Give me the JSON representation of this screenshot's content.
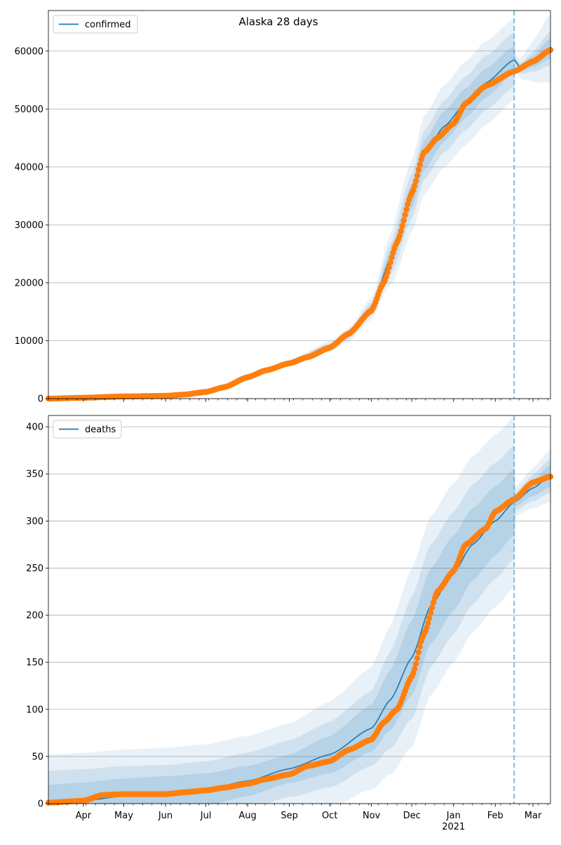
{
  "title": "Alaska 28 days",
  "colors": {
    "model_line": "#1f77b4",
    "observed_points": "#ff7f0e",
    "band": "#1f77b4",
    "forecast_marker": "#6baed6",
    "grid": "#b0b0b0"
  },
  "x_axis": {
    "start": "2020-03-06",
    "end": "2021-03-14",
    "month_ticks": [
      {
        "date": "2020-04-01",
        "label": "Apr"
      },
      {
        "date": "2020-05-01",
        "label": "May"
      },
      {
        "date": "2020-06-01",
        "label": "Jun"
      },
      {
        "date": "2020-07-01",
        "label": "Jul"
      },
      {
        "date": "2020-08-01",
        "label": "Aug"
      },
      {
        "date": "2020-09-01",
        "label": "Sep"
      },
      {
        "date": "2020-10-01",
        "label": "Oct"
      },
      {
        "date": "2020-11-01",
        "label": "Nov"
      },
      {
        "date": "2020-12-01",
        "label": "Dec"
      },
      {
        "date": "2021-01-01",
        "label": "Jan"
      },
      {
        "date": "2021-02-01",
        "label": "Feb"
      },
      {
        "date": "2021-03-01",
        "label": "Mar"
      }
    ],
    "year_label": {
      "date": "2021-01-01",
      "label": "2021"
    }
  },
  "chart_data": [
    {
      "type": "line",
      "legend": "confirmed",
      "legend_position": "top-left",
      "ylim": [
        0,
        67000
      ],
      "yticks": [
        0,
        10000,
        20000,
        30000,
        40000,
        50000,
        60000
      ],
      "grid": "horizontal",
      "forecast_start": "2021-02-15",
      "forecast_end": "2021-03-14",
      "model": [
        [
          "2020-03-06",
          0
        ],
        [
          "2020-05-01",
          300
        ],
        [
          "2020-06-01",
          500
        ],
        [
          "2020-07-01",
          1300
        ],
        [
          "2020-08-01",
          3600
        ],
        [
          "2020-09-01",
          6200
        ],
        [
          "2020-10-01",
          9000
        ],
        [
          "2020-10-15",
          11000
        ],
        [
          "2020-11-01",
          15500
        ],
        [
          "2020-11-15",
          24000
        ],
        [
          "2020-12-01",
          35000
        ],
        [
          "2020-12-10",
          42000
        ],
        [
          "2020-12-25",
          47000
        ],
        [
          "2021-01-10",
          51000
        ],
        [
          "2021-01-25",
          54500
        ],
        [
          "2021-02-15",
          58500
        ],
        [
          "2021-02-20",
          57000
        ],
        [
          "2021-03-01",
          58200
        ],
        [
          "2021-03-14",
          60500
        ]
      ],
      "band_rel_width": [
        [
          "2020-03-06",
          0.01,
          0.01,
          0.01
        ],
        [
          "2020-09-01",
          0.03,
          0.05,
          0.08
        ],
        [
          "2020-11-01",
          0.04,
          0.07,
          0.12
        ],
        [
          "2020-11-20",
          0.06,
          0.12,
          0.2
        ],
        [
          "2020-12-10",
          0.06,
          0.1,
          0.16
        ],
        [
          "2021-02-15",
          0.04,
          0.08,
          0.12
        ],
        [
          "2021-02-16",
          0.005,
          0.01,
          0.02
        ],
        [
          "2021-03-14",
          0.03,
          0.05,
          0.1
        ]
      ],
      "observed": [
        [
          "2020-03-06",
          0
        ],
        [
          "2020-04-01",
          150
        ],
        [
          "2020-05-01",
          380
        ],
        [
          "2020-06-01",
          480
        ],
        [
          "2020-06-15",
          700
        ],
        [
          "2020-07-01",
          1150
        ],
        [
          "2020-07-15",
          2000
        ],
        [
          "2020-08-01",
          3700
        ],
        [
          "2020-08-15",
          4900
        ],
        [
          "2020-09-01",
          6100
        ],
        [
          "2020-09-15",
          7200
        ],
        [
          "2020-10-01",
          8800
        ],
        [
          "2020-10-15",
          11200
        ],
        [
          "2020-11-01",
          15200
        ],
        [
          "2020-11-10",
          20000
        ],
        [
          "2020-11-20",
          27000
        ],
        [
          "2020-12-01",
          35500
        ],
        [
          "2020-12-10",
          42500
        ],
        [
          "2020-12-20",
          45000
        ],
        [
          "2021-01-01",
          47500
        ],
        [
          "2021-01-10",
          51000
        ],
        [
          "2021-01-25",
          54000
        ],
        [
          "2021-02-15",
          56500
        ],
        [
          "2021-03-01",
          58200
        ],
        [
          "2021-03-14",
          60200
        ]
      ]
    },
    {
      "type": "line",
      "legend": "deaths",
      "legend_position": "top-left",
      "ylim": [
        0,
        412
      ],
      "yticks": [
        0,
        50,
        100,
        150,
        200,
        250,
        300,
        350,
        400
      ],
      "grid": "horizontal",
      "forecast_start": "2021-02-15",
      "forecast_end": "2021-03-14",
      "model": [
        [
          "2020-03-06",
          0
        ],
        [
          "2020-04-01",
          3
        ],
        [
          "2020-05-01",
          8
        ],
        [
          "2020-06-01",
          11
        ],
        [
          "2020-07-01",
          15
        ],
        [
          "2020-08-01",
          24
        ],
        [
          "2020-09-01",
          37
        ],
        [
          "2020-10-01",
          52
        ],
        [
          "2020-11-01",
          80
        ],
        [
          "2020-11-15",
          110
        ],
        [
          "2020-12-01",
          155
        ],
        [
          "2020-12-15",
          210
        ],
        [
          "2021-01-01",
          245
        ],
        [
          "2021-01-15",
          275
        ],
        [
          "2021-02-01",
          300
        ],
        [
          "2021-02-15",
          320
        ],
        [
          "2021-03-01",
          335
        ],
        [
          "2021-03-14",
          348
        ]
      ],
      "band_rel_width": [
        [
          "2020-03-06",
          20,
          35,
          52
        ],
        [
          "2020-06-01",
          18,
          30,
          48
        ],
        [
          "2020-09-01",
          15,
          30,
          48
        ],
        [
          "2020-11-01",
          25,
          40,
          65
        ],
        [
          "2020-12-01",
          40,
          65,
          95
        ],
        [
          "2021-01-01",
          40,
          65,
          95
        ],
        [
          "2021-02-15",
          35,
          60,
          90
        ],
        [
          "2021-02-16",
          5,
          10,
          15
        ],
        [
          "2021-03-14",
          12,
          18,
          28
        ]
      ],
      "observed": [
        [
          "2020-03-06",
          1
        ],
        [
          "2020-04-01",
          3
        ],
        [
          "2020-04-15",
          9
        ],
        [
          "2020-05-01",
          10
        ],
        [
          "2020-06-01",
          10
        ],
        [
          "2020-06-15",
          12
        ],
        [
          "2020-07-01",
          14
        ],
        [
          "2020-07-15",
          17
        ],
        [
          "2020-08-01",
          21
        ],
        [
          "2020-08-15",
          26
        ],
        [
          "2020-09-01",
          31
        ],
        [
          "2020-09-15",
          40
        ],
        [
          "2020-10-01",
          45
        ],
        [
          "2020-10-15",
          57
        ],
        [
          "2020-11-01",
          68
        ],
        [
          "2020-11-10",
          86
        ],
        [
          "2020-11-20",
          100
        ],
        [
          "2020-12-01",
          135
        ],
        [
          "2020-12-10",
          180
        ],
        [
          "2020-12-20",
          225
        ],
        [
          "2021-01-01",
          247
        ],
        [
          "2021-01-10",
          275
        ],
        [
          "2021-01-25",
          292
        ],
        [
          "2021-02-01",
          310
        ],
        [
          "2021-02-15",
          323
        ],
        [
          "2021-03-01",
          341
        ],
        [
          "2021-03-14",
          347
        ]
      ]
    }
  ]
}
